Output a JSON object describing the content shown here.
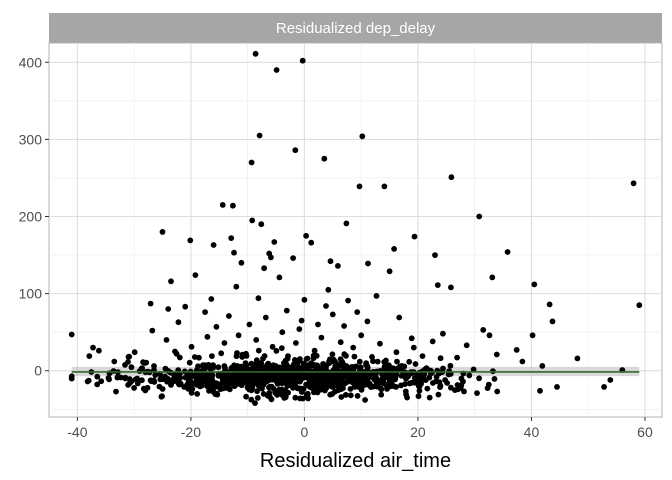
{
  "chart_data": {
    "type": "scatter",
    "facet_title": "Residualized dep_delay",
    "xlabel": "Residualized air_time",
    "ylabel": "",
    "xlim": [
      -45,
      63
    ],
    "ylim": [
      -60,
      425
    ],
    "x_ticks": [
      -40,
      -20,
      0,
      20,
      40,
      60
    ],
    "y_ticks": [
      0,
      100,
      200,
      300,
      400
    ],
    "x_tick_labels": [
      "-40",
      "-20",
      "0",
      "20",
      "40",
      "60"
    ],
    "y_tick_labels": [
      "0",
      "100",
      "200",
      "300",
      "400"
    ],
    "grid": true,
    "legend": "none",
    "colors": {
      "points": "#000000",
      "fit_line": "#2e6b2e",
      "confidence_band": "#c8c8c8",
      "strip_bg": "#a6a6a6",
      "grid": "#ebebeb",
      "panel_border": "#b3b3b3"
    },
    "fit_line": {
      "x": [
        -41,
        59
      ],
      "y": [
        -1.5,
        -1.5
      ],
      "se_band": [
        -7,
        5
      ]
    },
    "outliers": [
      {
        "x": -8.6,
        "y": 411
      },
      {
        "x": -0.3,
        "y": 402
      },
      {
        "x": -4.9,
        "y": 390
      },
      {
        "x": -7.9,
        "y": 305
      },
      {
        "x": 10.2,
        "y": 304
      },
      {
        "x": -1.6,
        "y": 286
      },
      {
        "x": 3.5,
        "y": 275
      },
      {
        "x": -9.3,
        "y": 270
      },
      {
        "x": 25.9,
        "y": 251
      },
      {
        "x": 58.0,
        "y": 243
      },
      {
        "x": 9.7,
        "y": 239
      },
      {
        "x": 14.1,
        "y": 239
      },
      {
        "x": -14.4,
        "y": 215
      },
      {
        "x": -12.6,
        "y": 214
      },
      {
        "x": 30.8,
        "y": 200
      },
      {
        "x": -9.2,
        "y": 195
      },
      {
        "x": 7.4,
        "y": 191
      },
      {
        "x": -7.6,
        "y": 190
      },
      {
        "x": -25.0,
        "y": 180
      },
      {
        "x": -12.9,
        "y": 172
      },
      {
        "x": 19.4,
        "y": 174
      },
      {
        "x": 0.3,
        "y": 175
      },
      {
        "x": -20.1,
        "y": 169
      },
      {
        "x": -5.3,
        "y": 167
      },
      {
        "x": -16.0,
        "y": 163
      },
      {
        "x": 1.2,
        "y": 166
      },
      {
        "x": 15.8,
        "y": 158
      },
      {
        "x": 35.8,
        "y": 154
      },
      {
        "x": -12.4,
        "y": 153
      },
      {
        "x": -6.2,
        "y": 152
      },
      {
        "x": 23.0,
        "y": 150
      },
      {
        "x": -5.9,
        "y": 147
      },
      {
        "x": -2.0,
        "y": 146
      },
      {
        "x": 4.6,
        "y": 142
      },
      {
        "x": -11.1,
        "y": 140
      },
      {
        "x": 11.2,
        "y": 139
      },
      {
        "x": 5.9,
        "y": 136
      },
      {
        "x": -7.1,
        "y": 133
      },
      {
        "x": 15.0,
        "y": 129
      },
      {
        "x": -19.2,
        "y": 124
      },
      {
        "x": -4.4,
        "y": 121
      },
      {
        "x": 33.1,
        "y": 121
      },
      {
        "x": -23.5,
        "y": 116
      },
      {
        "x": 40.5,
        "y": 112
      },
      {
        "x": 23.5,
        "y": 111
      },
      {
        "x": -12.0,
        "y": 109
      },
      {
        "x": 25.8,
        "y": 108
      },
      {
        "x": 4.2,
        "y": 105
      },
      {
        "x": 12.7,
        "y": 97
      },
      {
        "x": -16.4,
        "y": 93
      },
      {
        "x": -8.1,
        "y": 94
      },
      {
        "x": 0.0,
        "y": 92
      },
      {
        "x": 7.7,
        "y": 91
      },
      {
        "x": -27.1,
        "y": 87
      },
      {
        "x": 43.2,
        "y": 86
      },
      {
        "x": 59.0,
        "y": 85
      },
      {
        "x": 3.8,
        "y": 84
      },
      {
        "x": -21.0,
        "y": 83
      },
      {
        "x": -24.0,
        "y": 80
      },
      {
        "x": -3.1,
        "y": 78
      },
      {
        "x": 9.3,
        "y": 76
      },
      {
        "x": -17.5,
        "y": 76
      },
      {
        "x": 5.0,
        "y": 73
      },
      {
        "x": -13.3,
        "y": 71
      },
      {
        "x": 16.7,
        "y": 69
      },
      {
        "x": -6.8,
        "y": 69
      },
      {
        "x": 43.7,
        "y": 64
      },
      {
        "x": -0.5,
        "y": 65
      },
      {
        "x": 11.1,
        "y": 64
      },
      {
        "x": -22.2,
        "y": 63
      },
      {
        "x": -9.7,
        "y": 60
      },
      {
        "x": 2.4,
        "y": 60
      },
      {
        "x": 7.0,
        "y": 58
      },
      {
        "x": -15.5,
        "y": 57
      },
      {
        "x": 31.5,
        "y": 53
      },
      {
        "x": -26.8,
        "y": 52
      },
      {
        "x": -0.9,
        "y": 54
      },
      {
        "x": -41.0,
        "y": 47
      },
      {
        "x": 40.2,
        "y": 46
      },
      {
        "x": 24.4,
        "y": 48
      },
      {
        "x": 32.6,
        "y": 46
      },
      {
        "x": -3.9,
        "y": 50
      },
      {
        "x": -11.6,
        "y": 46
      },
      {
        "x": 10.0,
        "y": 46
      },
      {
        "x": -17.1,
        "y": 44
      },
      {
        "x": 18.9,
        "y": 42
      },
      {
        "x": 3.0,
        "y": 43
      },
      {
        "x": -24.3,
        "y": 40
      },
      {
        "x": 22.6,
        "y": 38
      },
      {
        "x": -8.5,
        "y": 40
      },
      {
        "x": 6.4,
        "y": 37
      },
      {
        "x": -14.1,
        "y": 36
      },
      {
        "x": -1.5,
        "y": 36
      },
      {
        "x": 13.3,
        "y": 35
      },
      {
        "x": 28.6,
        "y": 33
      },
      {
        "x": -19.9,
        "y": 31
      },
      {
        "x": -5.6,
        "y": 31
      },
      {
        "x": 8.6,
        "y": 30
      },
      {
        "x": 37.4,
        "y": 27
      },
      {
        "x": -36.2,
        "y": 26
      },
      {
        "x": -29.9,
        "y": 24
      },
      {
        "x": -22.8,
        "y": 25
      },
      {
        "x": 1.8,
        "y": 26
      },
      {
        "x": 16.2,
        "y": 24
      },
      {
        "x": -37.9,
        "y": 19
      },
      {
        "x": 48.1,
        "y": 16
      },
      {
        "x": -31.0,
        "y": 18
      },
      {
        "x": -10.3,
        "y": 22
      },
      {
        "x": 20.8,
        "y": 19
      },
      {
        "x": 26.9,
        "y": 17
      },
      {
        "x": 33.9,
        "y": 21
      },
      {
        "x": -16.3,
        "y": 19
      },
      {
        "x": -2.9,
        "y": 19
      },
      {
        "x": 11.9,
        "y": 18
      },
      {
        "x": -33.5,
        "y": 12
      },
      {
        "x": -28.1,
        "y": 10
      },
      {
        "x": 38.4,
        "y": 12
      },
      {
        "x": -38.2,
        "y": -14
      },
      {
        "x": 52.8,
        "y": -21
      },
      {
        "x": 53.9,
        "y": -12
      },
      {
        "x": 56.0,
        "y": 1
      },
      {
        "x": -33.2,
        "y": -27
      },
      {
        "x": 44.5,
        "y": -21
      },
      {
        "x": -8.7,
        "y": -42
      },
      {
        "x": -5.8,
        "y": -37
      },
      {
        "x": 10.7,
        "y": -38
      },
      {
        "x": -25.1,
        "y": -33
      },
      {
        "x": 20.1,
        "y": -33
      },
      {
        "x": 41.5,
        "y": -26
      },
      {
        "x": -1.6,
        "y": -35
      },
      {
        "x": 6.5,
        "y": -34
      },
      {
        "x": 30.4,
        "y": -29
      }
    ],
    "cluster": {
      "count": 1050,
      "x_mean": -1.5,
      "x_sd": 13.5,
      "x_range": [
        -41,
        47
      ],
      "y_center": -9,
      "y_spread": 15,
      "y_range": [
        -38,
        30
      ]
    }
  }
}
